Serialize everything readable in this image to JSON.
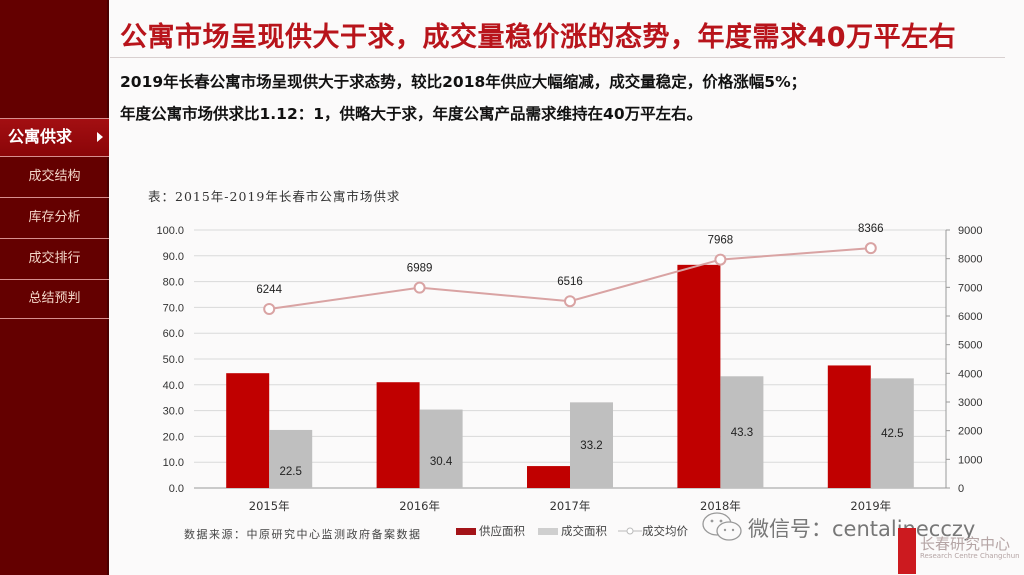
{
  "sidebar": {
    "items": [
      {
        "label": "公寓供求",
        "active": true
      },
      {
        "label": "成交结构",
        "active": false
      },
      {
        "label": "库存分析",
        "active": false
      },
      {
        "label": "成交排行",
        "active": false
      },
      {
        "label": "总结预判",
        "active": false
      }
    ]
  },
  "header": {
    "title": "公寓市场呈现供大于求，成交量稳价涨的态势，年度需求40万平左右",
    "lines": [
      "2019年长春公寓市场呈现供大于求态势，较比2018年供应大幅缩减，成交量稳定，价格涨幅5%；",
      "年度公寓市场供求比1.12：1，供略大于求，年度公寓产品需求维持在40万平左右。"
    ]
  },
  "colors": {
    "accent": "#b8141b",
    "sidebar": "#640000",
    "supply_bar": "#c00000",
    "deal_bar": "#bfbfbf",
    "price_line": "#d9a3a3"
  },
  "chart_data": {
    "type": "bar",
    "title": "表：2015年-2019年长春市公寓市场供求",
    "categories": [
      "2015年",
      "2016年",
      "2017年",
      "2018年",
      "2019年"
    ],
    "series": [
      {
        "name": "供应面积",
        "type": "bar",
        "axis": "left",
        "values": [
          44.5,
          41.0,
          8.5,
          86.5,
          47.5
        ],
        "labels_visible": false
      },
      {
        "name": "成交面积",
        "type": "bar",
        "axis": "left",
        "values": [
          22.5,
          30.4,
          33.2,
          43.3,
          42.5
        ]
      },
      {
        "name": "成交均价",
        "type": "line",
        "axis": "right",
        "values": [
          6244,
          6989,
          6516,
          7968,
          8366
        ]
      }
    ],
    "left_axis": {
      "min": 0,
      "max": 100,
      "step": 10,
      "ticks": [
        "0.0",
        "10.0",
        "20.0",
        "30.0",
        "40.0",
        "50.0",
        "60.0",
        "70.0",
        "80.0",
        "90.0",
        "100.0"
      ]
    },
    "right_axis": {
      "min": 0,
      "max": 9000,
      "step": 1000,
      "ticks": [
        "0",
        "1000",
        "2000",
        "3000",
        "4000",
        "5000",
        "6000",
        "7000",
        "8000",
        "9000"
      ]
    },
    "grid": true,
    "legend_position": "bottom-right",
    "xlabel": "",
    "ylabel": ""
  },
  "footer": {
    "source": "数据来源：中原研究中心监测政府备案数据",
    "wechat": "微信号：centalinecczy",
    "brand_name": "长春研究中心",
    "brand_en": "Research Centre Changchun"
  }
}
